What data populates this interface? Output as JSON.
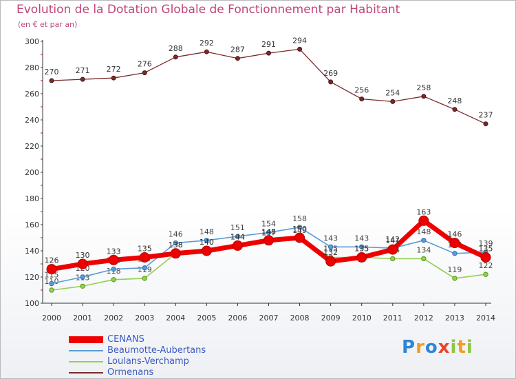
{
  "title": "Evolution de la Dotation Globale de Fonctionnement par Habitant",
  "subtitle": "(en € et par an)",
  "logo": {
    "text": "Proxiti",
    "letters": [
      "P",
      "r",
      "o",
      "x",
      "i",
      "t",
      "i"
    ]
  },
  "chart_data": {
    "type": "line",
    "title": "Evolution de la Dotation Globale de Fonctionnement par Habitant",
    "subtitle": "(en € et par an)",
    "xlabel": "",
    "ylabel": "",
    "x": [
      "2000",
      "2001",
      "2002",
      "2003",
      "2004",
      "2005",
      "2006",
      "2007",
      "2008",
      "2009",
      "2010",
      "2011",
      "2012",
      "2013",
      "2014"
    ],
    "ylim": [
      100,
      300
    ],
    "yticks": [
      100,
      120,
      140,
      160,
      180,
      200,
      220,
      240,
      260,
      280,
      300
    ],
    "grid": false,
    "legend_position": "bottom-left",
    "series": [
      {
        "name": "CENANS",
        "color": "#ee0000",
        "values": [
          126,
          130,
          133,
          135,
          138,
          140,
          144,
          148,
          150,
          132,
          135,
          141,
          163,
          146,
          135
        ]
      },
      {
        "name": "Beaumotte-Aubertans",
        "color": "#5b9bd5",
        "values": [
          115,
          120,
          126,
          127,
          146,
          148,
          151,
          154,
          158,
          143,
          143,
          142,
          148,
          138,
          139
        ]
      },
      {
        "name": "Loulans-Verchamp",
        "color": "#92d050",
        "values": [
          110,
          113,
          118,
          119,
          138,
          140,
          144,
          147,
          149,
          135,
          135,
          134,
          134,
          119,
          122
        ]
      },
      {
        "name": "Ormenans",
        "color": "#7b2a2a",
        "values": [
          270,
          271,
          272,
          276,
          288,
          292,
          287,
          291,
          294,
          269,
          256,
          254,
          258,
          248,
          237
        ]
      }
    ]
  }
}
